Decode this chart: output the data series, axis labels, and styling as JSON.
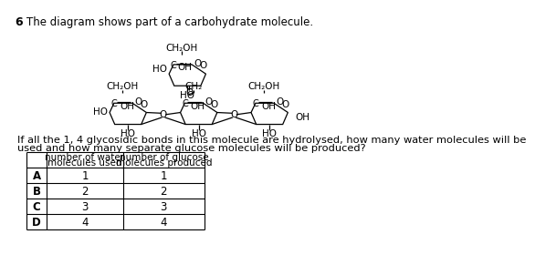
{
  "question_number": "6",
  "question_text": "The diagram shows part of a carbohydrate molecule.",
  "body_line1": "If all the 1, 4 glycosidic bonds in this molecule are hydrolysed, how many water molecules will be",
  "body_line2": "used and how many separate glucose molecules will be produced?",
  "table_col1_header1": "number of water",
  "table_col1_header2": "molecules used",
  "table_col2_header1": "number of glucose",
  "table_col2_header2": "molecules produced",
  "row_labels": [
    "A",
    "B",
    "C",
    "D"
  ],
  "col1_values": [
    "1",
    "2",
    "3",
    "4"
  ],
  "col2_values": [
    "1",
    "2",
    "3",
    "4"
  ]
}
